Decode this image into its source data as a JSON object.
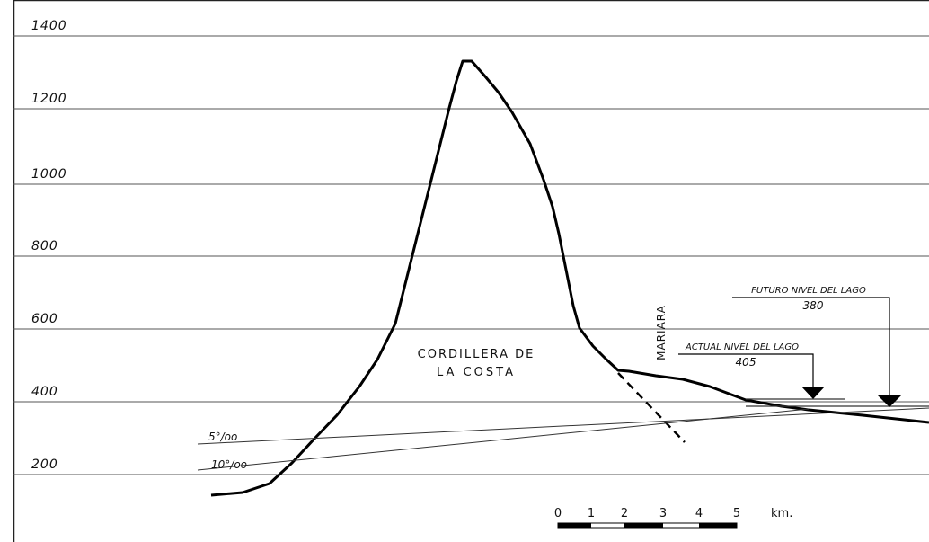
{
  "y_axis": {
    "labels": [
      "1400",
      "1200",
      "1000",
      "800",
      "600",
      "400",
      "200"
    ]
  },
  "annotations": {
    "range": [
      "CORDILLERA DE",
      "LA COSTA"
    ],
    "fault": "MARIARA",
    "future_level": {
      "label": "FUTURO NIVEL DEL LAGO",
      "value": "380"
    },
    "current_level": {
      "label": "ACTUAL NIVEL DEL LAGO",
      "value": "405"
    },
    "slopes": [
      "5°/oo",
      "10°/oo"
    ]
  },
  "scale_bar": {
    "labels": [
      "0",
      "1",
      "2",
      "3",
      "4",
      "5"
    ],
    "unit": "km."
  }
}
